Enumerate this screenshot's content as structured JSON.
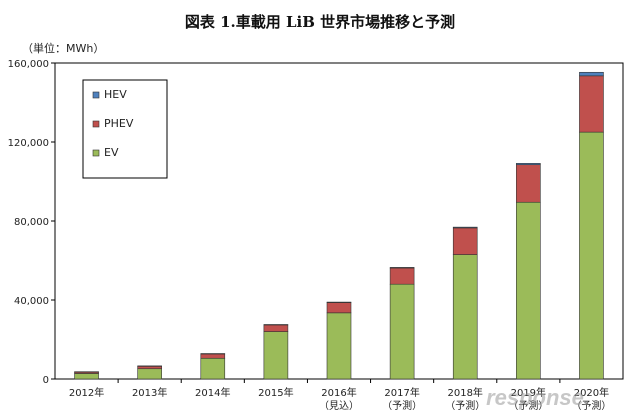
{
  "chart_data": {
    "type": "bar",
    "stacked": true,
    "title": "図表 1.車載用 LiB 世界市場推移と予測",
    "unit_label": "（単位：MWh）",
    "categories": [
      [
        "2012年",
        ""
      ],
      [
        "2013年",
        ""
      ],
      [
        "2014年",
        ""
      ],
      [
        "2015年",
        ""
      ],
      [
        "2016年",
        "（見込）"
      ],
      [
        "2017年",
        "（予測）"
      ],
      [
        "2018年",
        "（予測）"
      ],
      [
        "2019年",
        "（予測）"
      ],
      [
        "2020年",
        "（予測）"
      ]
    ],
    "series": [
      {
        "name": "EV",
        "color": "#9bbb59",
        "values": [
          2800,
          5200,
          10500,
          24000,
          33500,
          48000,
          63000,
          89500,
          125000
        ]
      },
      {
        "name": "PHEV",
        "color": "#c0504d",
        "values": [
          800,
          1300,
          2200,
          3400,
          5200,
          8200,
          13500,
          19000,
          28500
        ]
      },
      {
        "name": "HEV",
        "color": "#4f81bd",
        "values": [
          100,
          150,
          200,
          200,
          250,
          300,
          400,
          700,
          1800
        ]
      }
    ],
    "legend_order": [
      "HEV",
      "PHEV",
      "EV"
    ],
    "legend_position": "top-left",
    "ylim": [
      0,
      160000
    ],
    "yticks": [
      "0",
      "40,000",
      "80,000",
      "120,000",
      "160,000"
    ],
    "ytick_values": [
      0,
      40000,
      80000,
      120000,
      160000
    ],
    "grid": false
  },
  "watermark": "response."
}
